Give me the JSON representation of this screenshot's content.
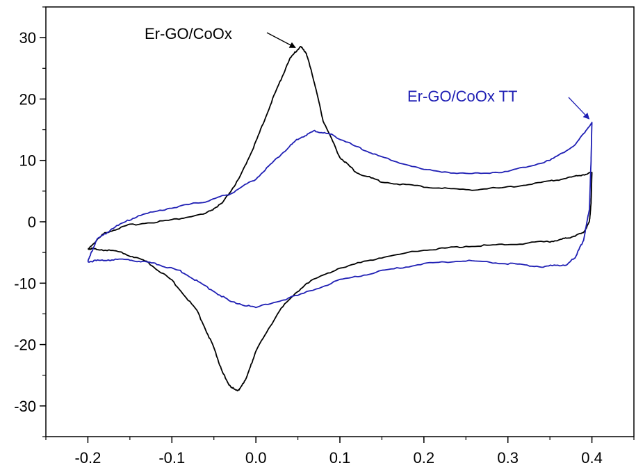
{
  "chart_data": {
    "type": "line",
    "title": "",
    "xlabel": "",
    "ylabel": "",
    "xlim": [
      -0.25,
      0.45
    ],
    "ylim": [
      -35,
      35
    ],
    "grid": false,
    "x_ticks": [
      -0.2,
      -0.1,
      0.0,
      0.1,
      0.2,
      0.3,
      0.4
    ],
    "x_tick_labels": [
      "-0.2",
      "-0.1",
      "0.0",
      "0.1",
      "0.2",
      "0.3",
      "0.4"
    ],
    "y_ticks": [
      30,
      20,
      10,
      0,
      -10,
      -20,
      -30
    ],
    "y_tick_labels": [
      "30",
      "20",
      "10",
      "0",
      "-10",
      "-20",
      "-30"
    ],
    "series": [
      {
        "name": "Er-GO/CoOx",
        "color": "#000000",
        "forward": [
          [
            -0.2,
            -4.4
          ],
          [
            -0.18,
            -1.8
          ],
          [
            -0.15,
            -0.5
          ],
          [
            -0.1,
            0.3
          ],
          [
            -0.06,
            1.3
          ],
          [
            -0.04,
            3
          ],
          [
            -0.02,
            7
          ],
          [
            0.0,
            13
          ],
          [
            0.02,
            20
          ],
          [
            0.04,
            26.5
          ],
          [
            0.053,
            28.6
          ],
          [
            0.06,
            27.5
          ],
          [
            0.07,
            22.5
          ],
          [
            0.08,
            16.5
          ],
          [
            0.1,
            10.5
          ],
          [
            0.12,
            8
          ],
          [
            0.15,
            6.5
          ],
          [
            0.2,
            5.7
          ],
          [
            0.25,
            5.2
          ],
          [
            0.3,
            5.6
          ],
          [
            0.35,
            6.6
          ],
          [
            0.38,
            7.4
          ],
          [
            0.4,
            8
          ]
        ],
        "reverse": [
          [
            0.4,
            8
          ],
          [
            0.399,
            3
          ],
          [
            0.397,
            0
          ],
          [
            0.39,
            -1.8
          ],
          [
            0.37,
            -2.7
          ],
          [
            0.35,
            -3.2
          ],
          [
            0.3,
            -3.7
          ],
          [
            0.25,
            -4
          ],
          [
            0.2,
            -4.6
          ],
          [
            0.15,
            -5.8
          ],
          [
            0.1,
            -7.5
          ],
          [
            0.06,
            -10
          ],
          [
            0.03,
            -14
          ],
          [
            0.0,
            -21
          ],
          [
            -0.01,
            -25
          ],
          [
            -0.02,
            -27.5
          ],
          [
            -0.03,
            -27
          ],
          [
            -0.04,
            -24.5
          ],
          [
            -0.05,
            -20.5
          ],
          [
            -0.07,
            -14.5
          ],
          [
            -0.1,
            -9.5
          ],
          [
            -0.13,
            -6.5
          ],
          [
            -0.16,
            -5
          ],
          [
            -0.19,
            -4.4
          ],
          [
            -0.2,
            -4.4
          ]
        ]
      },
      {
        "name": "Er-GO/CoOx TT",
        "color": "#1f1fb4",
        "forward": [
          [
            -0.2,
            -6.5
          ],
          [
            -0.19,
            -3
          ],
          [
            -0.17,
            -1
          ],
          [
            -0.14,
            1
          ],
          [
            -0.1,
            2.3
          ],
          [
            -0.06,
            3.3
          ],
          [
            -0.03,
            4.6
          ],
          [
            0.0,
            7
          ],
          [
            0.03,
            11
          ],
          [
            0.05,
            13.5
          ],
          [
            0.07,
            14.8
          ],
          [
            0.09,
            14.2
          ],
          [
            0.12,
            12.2
          ],
          [
            0.15,
            10.5
          ],
          [
            0.2,
            8.5
          ],
          [
            0.25,
            7.8
          ],
          [
            0.3,
            8.2
          ],
          [
            0.35,
            10
          ],
          [
            0.38,
            12.5
          ],
          [
            0.4,
            16.2
          ]
        ],
        "reverse": [
          [
            0.4,
            16.2
          ],
          [
            0.399,
            10
          ],
          [
            0.397,
            2
          ],
          [
            0.39,
            -3
          ],
          [
            0.38,
            -5.8
          ],
          [
            0.37,
            -7
          ],
          [
            0.34,
            -7.3
          ],
          [
            0.3,
            -6.8
          ],
          [
            0.25,
            -6.3
          ],
          [
            0.2,
            -6.8
          ],
          [
            0.15,
            -8
          ],
          [
            0.1,
            -9.5
          ],
          [
            0.05,
            -12
          ],
          [
            0.0,
            -14
          ],
          [
            -0.03,
            -13
          ],
          [
            -0.06,
            -10.5
          ],
          [
            -0.09,
            -8
          ],
          [
            -0.12,
            -6.8
          ],
          [
            -0.15,
            -6.2
          ],
          [
            -0.18,
            -6.2
          ],
          [
            -0.2,
            -6.5
          ]
        ]
      }
    ],
    "annotations": [
      {
        "text": "Er-GO/CoOx",
        "color": "#000000",
        "target": [
          0.052,
          28.6
        ]
      },
      {
        "text": "Er-GO/CoOx TT",
        "color": "#1f1fb4",
        "target": [
          0.4,
          16.3
        ]
      }
    ]
  }
}
